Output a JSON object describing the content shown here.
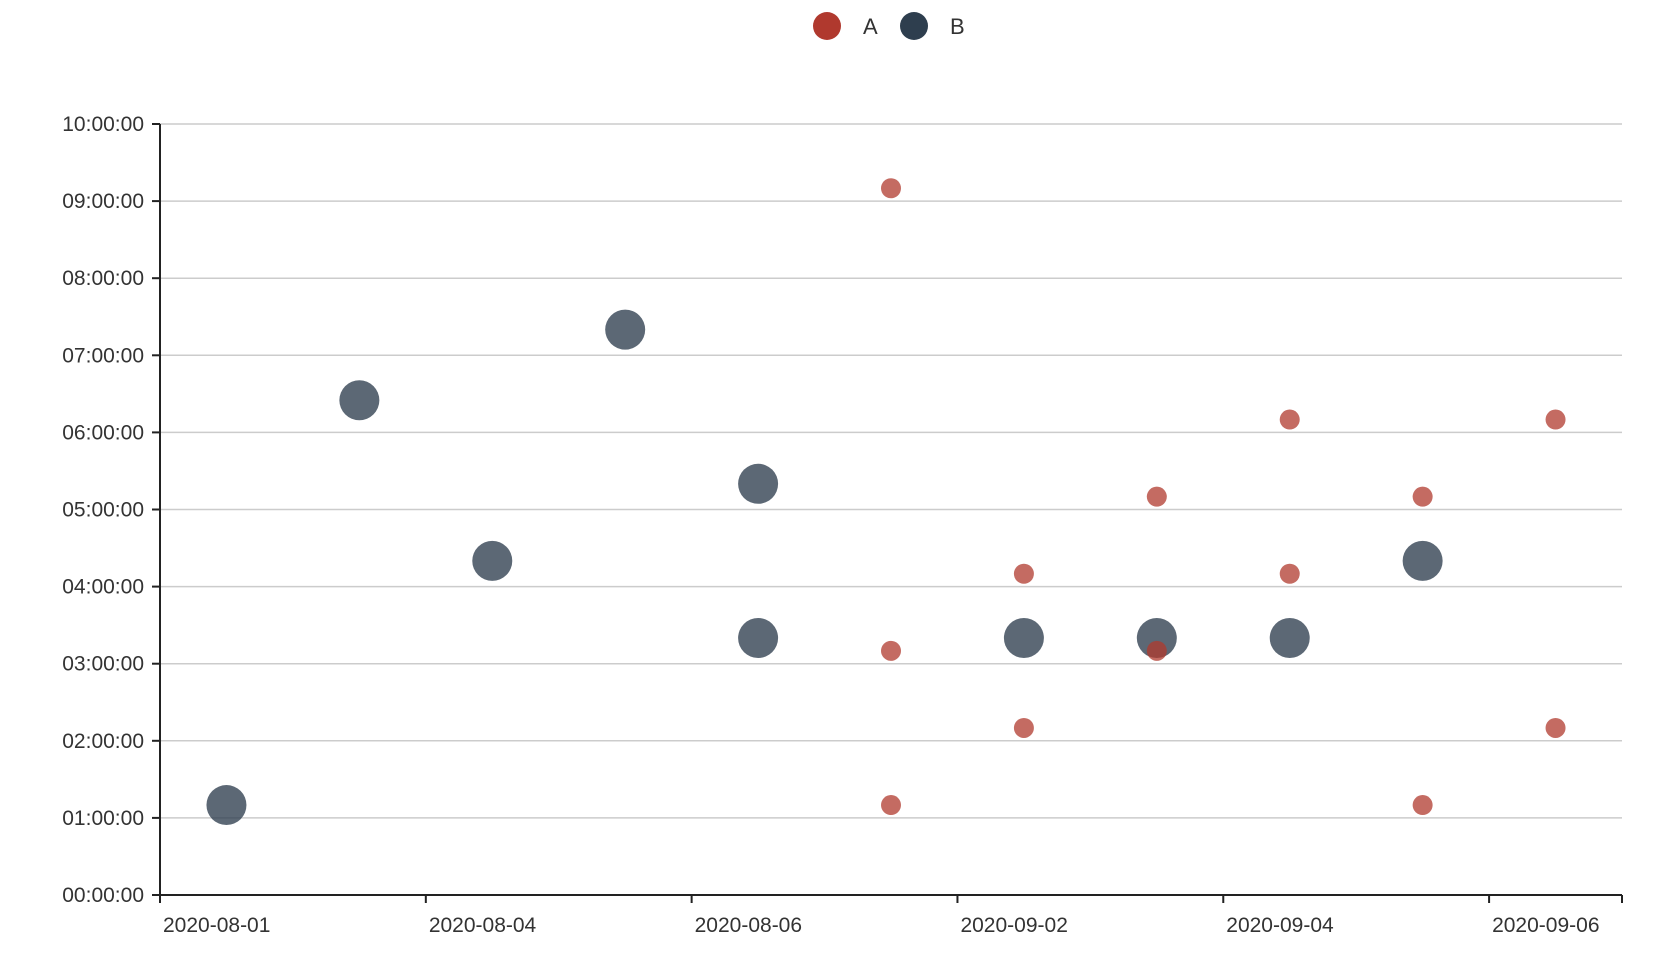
{
  "chart_data": {
    "type": "scatter",
    "title": "",
    "xlabel": "",
    "ylabel": "",
    "x_categories": [
      "2020-08-01",
      "2020-08-03",
      "2020-08-04",
      "2020-08-05",
      "2020-08-06",
      "2020-08-07",
      "2020-09-02",
      "2020-09-03",
      "2020-09-04",
      "2020-09-05",
      "2020-09-06"
    ],
    "x_tick_labels": [
      "2020-08-01",
      "2020-08-04",
      "2020-08-06",
      "2020-09-02",
      "2020-09-04",
      "2020-09-06"
    ],
    "y_tick_labels": [
      "00:00:00",
      "01:00:00",
      "02:00:00",
      "03:00:00",
      "04:00:00",
      "05:00:00",
      "06:00:00",
      "07:00:00",
      "08:00:00",
      "09:00:00",
      "10:00:00"
    ],
    "ylim": [
      "00:00:00",
      "10:00:00"
    ],
    "grid": true,
    "legend_position": "top-center",
    "series": [
      {
        "name": "A",
        "color": "#b0392e",
        "points": [
          {
            "x": "2020-08-07",
            "y": "09:10:00"
          },
          {
            "x": "2020-08-07",
            "y": "03:10:00"
          },
          {
            "x": "2020-08-07",
            "y": "01:10:00"
          },
          {
            "x": "2020-09-02",
            "y": "04:10:00"
          },
          {
            "x": "2020-09-02",
            "y": "02:10:00"
          },
          {
            "x": "2020-09-03",
            "y": "05:10:00"
          },
          {
            "x": "2020-09-03",
            "y": "03:10:00"
          },
          {
            "x": "2020-09-04",
            "y": "06:10:00"
          },
          {
            "x": "2020-09-04",
            "y": "04:10:00"
          },
          {
            "x": "2020-09-05",
            "y": "05:10:00"
          },
          {
            "x": "2020-09-05",
            "y": "01:10:00"
          },
          {
            "x": "2020-09-06",
            "y": "06:10:00"
          },
          {
            "x": "2020-09-06",
            "y": "02:10:00"
          }
        ]
      },
      {
        "name": "B",
        "color": "#2e3e4e",
        "points": [
          {
            "x": "2020-08-01",
            "y": "01:10:00"
          },
          {
            "x": "2020-08-03",
            "y": "06:25:00"
          },
          {
            "x": "2020-08-04",
            "y": "04:20:00"
          },
          {
            "x": "2020-08-05",
            "y": "07:20:00"
          },
          {
            "x": "2020-08-06",
            "y": "05:20:00"
          },
          {
            "x": "2020-08-06",
            "y": "03:20:00"
          },
          {
            "x": "2020-09-02",
            "y": "03:20:00"
          },
          {
            "x": "2020-09-03",
            "y": "03:20:00"
          },
          {
            "x": "2020-09-04",
            "y": "03:20:00"
          },
          {
            "x": "2020-09-05",
            "y": "04:20:00"
          }
        ]
      }
    ]
  }
}
